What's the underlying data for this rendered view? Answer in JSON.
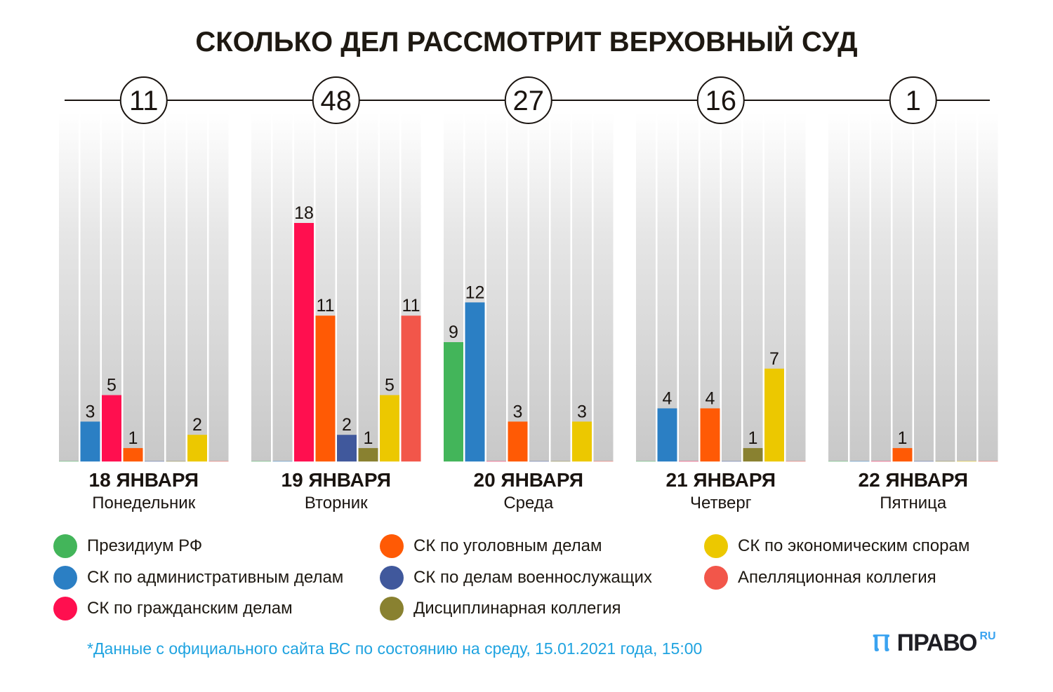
{
  "title": "СКОЛЬКО ДЕЛ РАССМОТРИТ ВЕРХОВНЫЙ СУД",
  "chart_data": {
    "type": "bar",
    "title": "СКОЛЬКО ДЕЛ РАССМОТРИТ ВЕРХОВНЫЙ СУД",
    "xlabel": "",
    "ylabel": "",
    "ylim": [
      0,
      18
    ],
    "grid": false,
    "legend_position": "bottom",
    "series": [
      {
        "name": "Президиум РФ",
        "color": "#43b55a"
      },
      {
        "name": "СК по административным делам",
        "color": "#2b7fc4"
      },
      {
        "name": "СК по гражданским делам",
        "color": "#ff0f4f"
      },
      {
        "name": "СК по уголовным делам",
        "color": "#ff5a05"
      },
      {
        "name": "СК по делам военнослужащих",
        "color": "#40589c"
      },
      {
        "name": "Дисциплинарная коллегия",
        "color": "#898130"
      },
      {
        "name": "СК по экономическим спорам",
        "color": "#ecc800"
      },
      {
        "name": "Апелляционная коллегия",
        "color": "#f2564a"
      }
    ],
    "groups": [
      {
        "date": "18 ЯНВАРЯ",
        "weekday": "Понедельник",
        "total": "11",
        "values": [
          0,
          3,
          5,
          1,
          0,
          0,
          2,
          0
        ]
      },
      {
        "date": "19 ЯНВАРЯ",
        "weekday": "Вторник",
        "total": "48",
        "values": [
          0,
          0,
          18,
          11,
          2,
          1,
          5,
          11
        ]
      },
      {
        "date": "20 ЯНВАРЯ",
        "weekday": "Среда",
        "total": "27",
        "values": [
          9,
          12,
          0,
          3,
          0,
          0,
          3,
          0
        ]
      },
      {
        "date": "21 ЯНВАРЯ",
        "weekday": "Четверг",
        "total": "16",
        "values": [
          0,
          4,
          0,
          4,
          0,
          1,
          7,
          0
        ]
      },
      {
        "date": "22 ЯНВАРЯ",
        "weekday": "Пятница",
        "total": "1",
        "values": [
          0,
          0,
          0,
          1,
          0,
          0,
          0,
          0
        ]
      }
    ]
  },
  "legend": [
    {
      "label": "Президиум РФ",
      "color": "#43b55a"
    },
    {
      "label": "СК по административным делам",
      "color": "#2b7fc4"
    },
    {
      "label": "СК по гражданским делам",
      "color": "#ff0f4f"
    },
    {
      "label": "СК по уголовным делам",
      "color": "#ff5a05"
    },
    {
      "label": "СК по делам военнослужащих",
      "color": "#40589c"
    },
    {
      "label": "Дисциплинарная коллегия",
      "color": "#898130"
    },
    {
      "label": "СК по экономическим спорам",
      "color": "#ecc800"
    },
    {
      "label": "Апелляционная коллегия",
      "color": "#f2564a"
    }
  ],
  "footnote": "*Данные с официального сайта ВС по состоянию на среду, 15.01.2021 года, 15:00",
  "logo": {
    "text": "ПРАВО",
    "suffix": "RU"
  }
}
